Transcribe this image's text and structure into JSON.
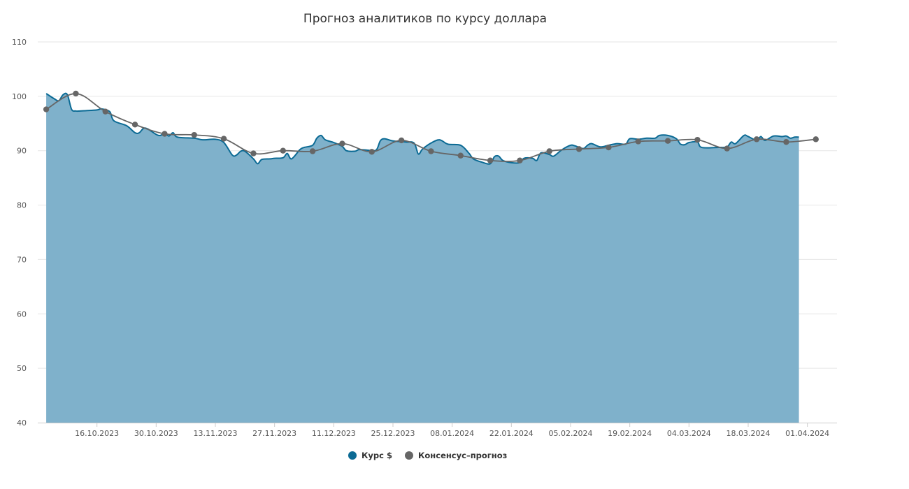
{
  "chart_data": {
    "type": "area",
    "title": "Прогноз аналитиков по курсу доллара",
    "xlabel": "",
    "ylabel": "",
    "ylim": [
      40,
      110
    ],
    "yticks": [
      "40",
      "50",
      "60",
      "70",
      "80",
      "90",
      "100",
      "110"
    ],
    "x_range": [
      "2023-10-02",
      "2024-04-08"
    ],
    "xticks": [
      {
        "date": "2023-10-16",
        "label": "16.10.2023"
      },
      {
        "date": "2023-10-30",
        "label": "30.10.2023"
      },
      {
        "date": "2023-11-13",
        "label": "13.11.2023"
      },
      {
        "date": "2023-11-27",
        "label": "27.11.2023"
      },
      {
        "date": "2023-12-11",
        "label": "11.12.2023"
      },
      {
        "date": "2023-12-25",
        "label": "25.12.2023"
      },
      {
        "date": "2024-01-08",
        "label": "08.01.2024"
      },
      {
        "date": "2024-01-22",
        "label": "22.01.2024"
      },
      {
        "date": "2024-02-05",
        "label": "05.02.2024"
      },
      {
        "date": "2024-02-19",
        "label": "19.02.2024"
      },
      {
        "date": "2024-03-04",
        "label": "04.03.2024"
      },
      {
        "date": "2024-03-18",
        "label": "18.03.2024"
      },
      {
        "date": "2024-04-01",
        "label": "01.04.2024"
      }
    ],
    "grid": true,
    "legend_position": "bottom-center",
    "series": [
      {
        "name": "Курс $",
        "type": "area",
        "color": "#0b6a94",
        "fill_color": "#7fb1cb",
        "points": [
          [
            "2023-10-04",
            100.5
          ],
          [
            "2023-10-06",
            99.5
          ],
          [
            "2023-10-07",
            99.2
          ],
          [
            "2023-10-08",
            100.3
          ],
          [
            "2023-10-09",
            100.3
          ],
          [
            "2023-10-10",
            97.6
          ],
          [
            "2023-10-11",
            97.3
          ],
          [
            "2023-10-12",
            97.3
          ],
          [
            "2023-10-16",
            97.5
          ],
          [
            "2023-10-17",
            97.7
          ],
          [
            "2023-10-19",
            97.2
          ],
          [
            "2023-10-20",
            95.5
          ],
          [
            "2023-10-23",
            94.6
          ],
          [
            "2023-10-25",
            93.3
          ],
          [
            "2023-10-26",
            93.3
          ],
          [
            "2023-10-27",
            94.1
          ],
          [
            "2023-10-28",
            94.0
          ],
          [
            "2023-10-30",
            93.0
          ],
          [
            "2023-10-31",
            92.8
          ],
          [
            "2023-11-01",
            93.3
          ],
          [
            "2023-11-02",
            92.7
          ],
          [
            "2023-11-03",
            93.3
          ],
          [
            "2023-11-04",
            92.5
          ],
          [
            "2023-11-08",
            92.3
          ],
          [
            "2023-11-10",
            92.0
          ],
          [
            "2023-11-13",
            92.1
          ],
          [
            "2023-11-15",
            91.5
          ],
          [
            "2023-11-17",
            89.2
          ],
          [
            "2023-11-18",
            89.2
          ],
          [
            "2023-11-19",
            89.9
          ],
          [
            "2023-11-20",
            89.9
          ],
          [
            "2023-11-22",
            88.5
          ],
          [
            "2023-11-23",
            87.6
          ],
          [
            "2023-11-24",
            88.4
          ],
          [
            "2023-11-26",
            88.5
          ],
          [
            "2023-11-27",
            88.6
          ],
          [
            "2023-11-29",
            88.7
          ],
          [
            "2023-11-30",
            89.5
          ],
          [
            "2023-12-01",
            88.5
          ],
          [
            "2023-12-03",
            90.2
          ],
          [
            "2023-12-04",
            90.6
          ],
          [
            "2023-12-06",
            91.0
          ],
          [
            "2023-12-07",
            92.3
          ],
          [
            "2023-12-08",
            92.8
          ],
          [
            "2023-12-09",
            92.0
          ],
          [
            "2023-12-11",
            91.5
          ],
          [
            "2023-12-13",
            90.8
          ],
          [
            "2023-12-14",
            90.0
          ],
          [
            "2023-12-16",
            89.9
          ],
          [
            "2023-12-17",
            90.2
          ],
          [
            "2023-12-19",
            90.1
          ],
          [
            "2023-12-21",
            90.1
          ],
          [
            "2023-12-22",
            91.8
          ],
          [
            "2023-12-23",
            92.2
          ],
          [
            "2023-12-25",
            91.8
          ],
          [
            "2023-12-28",
            91.6
          ],
          [
            "2023-12-30",
            91.4
          ],
          [
            "2023-12-31",
            89.4
          ],
          [
            "2024-01-01",
            90.3
          ],
          [
            "2024-01-03",
            91.4
          ],
          [
            "2024-01-05",
            92.0
          ],
          [
            "2024-01-07",
            91.2
          ],
          [
            "2024-01-10",
            91.0
          ],
          [
            "2024-01-12",
            89.5
          ],
          [
            "2024-01-13",
            88.5
          ],
          [
            "2024-01-15",
            87.9
          ],
          [
            "2024-01-17",
            87.6
          ],
          [
            "2024-01-18",
            88.9
          ],
          [
            "2024-01-19",
            89.0
          ],
          [
            "2024-01-20",
            88.2
          ],
          [
            "2024-01-22",
            87.8
          ],
          [
            "2024-01-24",
            87.8
          ],
          [
            "2024-01-25",
            88.6
          ],
          [
            "2024-01-27",
            88.6
          ],
          [
            "2024-01-28",
            88.2
          ],
          [
            "2024-01-29",
            89.6
          ],
          [
            "2024-01-31",
            89.3
          ],
          [
            "2024-02-01",
            89.0
          ],
          [
            "2024-02-03",
            90.2
          ],
          [
            "2024-02-05",
            91.0
          ],
          [
            "2024-02-06",
            90.9
          ],
          [
            "2024-02-08",
            90.4
          ],
          [
            "2024-02-09",
            91.0
          ],
          [
            "2024-02-10",
            91.3
          ],
          [
            "2024-02-12",
            90.7
          ],
          [
            "2024-02-14",
            91.0
          ],
          [
            "2024-02-16",
            91.3
          ],
          [
            "2024-02-18",
            91.2
          ],
          [
            "2024-02-19",
            92.2
          ],
          [
            "2024-02-21",
            92.1
          ],
          [
            "2024-02-23",
            92.3
          ],
          [
            "2024-02-25",
            92.3
          ],
          [
            "2024-02-26",
            92.8
          ],
          [
            "2024-02-28",
            92.8
          ],
          [
            "2024-03-01",
            92.2
          ],
          [
            "2024-03-02",
            91.2
          ],
          [
            "2024-03-03",
            91.1
          ],
          [
            "2024-03-04",
            91.5
          ],
          [
            "2024-03-06",
            91.6
          ],
          [
            "2024-03-07",
            90.6
          ],
          [
            "2024-03-11",
            90.6
          ],
          [
            "2024-03-13",
            90.7
          ],
          [
            "2024-03-14",
            91.6
          ],
          [
            "2024-03-15",
            91.3
          ],
          [
            "2024-03-17",
            92.8
          ],
          [
            "2024-03-18",
            92.6
          ],
          [
            "2024-03-20",
            91.9
          ],
          [
            "2024-03-21",
            92.6
          ],
          [
            "2024-03-22",
            91.9
          ],
          [
            "2024-03-24",
            92.7
          ],
          [
            "2024-03-26",
            92.6
          ],
          [
            "2024-03-27",
            92.7
          ],
          [
            "2024-03-28",
            92.3
          ],
          [
            "2024-03-29",
            92.5
          ],
          [
            "2024-03-30",
            92.5
          ]
        ]
      },
      {
        "name": "Консенсус–прогноз",
        "type": "line",
        "color": "#666666",
        "points": [
          [
            "2023-10-04",
            97.6
          ],
          [
            "2023-10-11",
            100.5
          ],
          [
            "2023-10-18",
            97.2
          ],
          [
            "2023-10-25",
            94.8
          ],
          [
            "2023-11-01",
            93.1
          ],
          [
            "2023-11-08",
            92.9
          ],
          [
            "2023-11-15",
            92.2
          ],
          [
            "2023-11-22",
            89.5
          ],
          [
            "2023-11-29",
            90.0
          ],
          [
            "2023-12-06",
            89.9
          ],
          [
            "2023-12-13",
            91.3
          ],
          [
            "2023-12-20",
            89.8
          ],
          [
            "2023-12-27",
            91.9
          ],
          [
            "2024-01-03",
            89.9
          ],
          [
            "2024-01-10",
            89.1
          ],
          [
            "2024-01-17",
            88.2
          ],
          [
            "2024-01-24",
            88.2
          ],
          [
            "2024-01-31",
            89.9
          ],
          [
            "2024-02-07",
            90.3
          ],
          [
            "2024-02-14",
            90.6
          ],
          [
            "2024-02-21",
            91.7
          ],
          [
            "2024-02-28",
            91.8
          ],
          [
            "2024-03-06",
            92.0
          ],
          [
            "2024-03-13",
            90.4
          ],
          [
            "2024-03-20",
            92.1
          ],
          [
            "2024-03-27",
            91.6
          ],
          [
            "2024-04-03",
            92.1
          ]
        ]
      }
    ]
  },
  "legend": {
    "items": [
      {
        "label": "Курс $",
        "color": "#0b6a94"
      },
      {
        "label": "Консенсус–прогноз",
        "color": "#666666"
      }
    ]
  }
}
